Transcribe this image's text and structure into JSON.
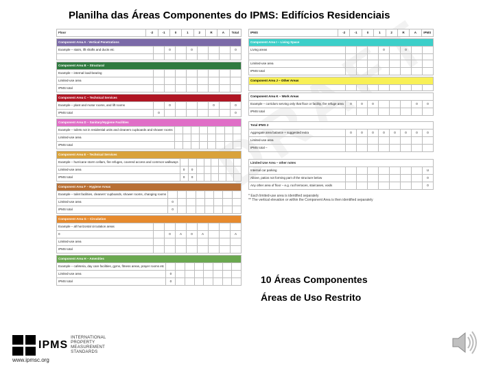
{
  "title": "Planilha das Áreas Componentes do IPMS: Edifícios Residenciais",
  "labels": {
    "l1": "10 Áreas Componentes",
    "l2": "Áreas de Uso Restrito"
  },
  "footer": {
    "logo_lines": [
      "INTERNATIONAL",
      "PROPERTY",
      "MEASUREMENT",
      "STANDARDS"
    ],
    "url": "www.ipmsc.org"
  },
  "watermark": "DRAFT",
  "header_cols": [
    "Floor",
    "-2",
    "-1",
    "0",
    "1",
    "2",
    "R",
    "A",
    "Total"
  ],
  "header_cols_r": [
    "IPMS",
    "-2",
    "-1",
    "0",
    "1",
    "2",
    "R",
    "A",
    "IPMS"
  ],
  "left": [
    {
      "band_color": "#7b6aa8",
      "band": "Component Area A - Vertical Penetrations",
      "rows": [
        [
          "Example – stairs, lift shafts and ducts etc",
          "",
          "0",
          "",
          "0",
          "",
          "",
          "",
          "0"
        ],
        [
          "",
          "",
          "",
          "",
          "",
          "",
          "",
          "",
          ""
        ]
      ]
    },
    {
      "band_color": "#2f7a3f",
      "band": "Component Area B – Structural",
      "rows": [
        [
          "Example – internal load-bearing",
          "",
          "",
          "",
          "",
          "",
          "",
          "",
          ""
        ],
        [
          "Limited-use area",
          "",
          "",
          "",
          "",
          "",
          "",
          "",
          ""
        ],
        [
          "IPMS total",
          "",
          "",
          "",
          "",
          "",
          "",
          "",
          ""
        ]
      ]
    },
    {
      "band_color": "#b01523",
      "band": "Component Area C – Technical Services",
      "rows": [
        [
          "Example – plant and motor rooms, and lift rooms",
          "",
          "0",
          "",
          "",
          "",
          "0",
          "",
          "0"
        ],
        [
          "IPMS total",
          "0",
          "",
          "",
          "",
          "",
          "",
          "",
          "0"
        ]
      ]
    },
    {
      "band_color": "#e06ec7",
      "band": "Component Area D – Sanitary/Hygiene Facilities",
      "rows": [
        [
          "Example – toilets not in residential units and cleaners cupboards and shower rooms",
          "",
          "",
          "",
          "",
          "",
          "",
          "",
          ""
        ],
        [
          "Limited-use area",
          "",
          "",
          "",
          "",
          "",
          "",
          "",
          ""
        ],
        [
          "IPMS total",
          "",
          "",
          "",
          "",
          "",
          "",
          "",
          ""
        ]
      ]
    },
    {
      "band_color": "#d9a23a",
      "band": "Component Area E – Technical Services",
      "rows": [
        [
          "Example – hurricane storm cellars, fire refuges, covered access and common walkways",
          "",
          "",
          "",
          "",
          "",
          "",
          "",
          ""
        ],
        [
          "Limited-use area",
          "0",
          "0",
          "",
          "",
          "",
          "",
          "",
          ""
        ],
        [
          "IPMS total",
          "0",
          "0",
          "",
          "",
          "",
          "",
          "",
          ""
        ]
      ]
    },
    {
      "band_color": "#b86f34",
      "band": "Component Area F – Hygiene Areas",
      "rows": [
        [
          "Example – toilet facilities, cleaners' cupboards, shower rooms, changing rooms",
          "",
          "",
          "",
          "",
          "",
          "",
          "",
          ""
        ],
        [
          "Limited-use area",
          "0",
          "",
          "",
          "",
          "",
          "",
          "",
          ""
        ],
        [
          "IPMS total",
          "0",
          "",
          "",
          "",
          "",
          "",
          "",
          ""
        ]
      ]
    },
    {
      "band_color": "#e68a2e",
      "band": "Component Area G – Circulation",
      "rows": [
        [
          "Example – all horizontal circulation areas",
          "",
          "",
          "",
          "",
          "",
          "",
          "",
          ""
        ],
        [
          "0",
          "",
          "0",
          "A",
          "0",
          "A",
          "",
          "",
          "A"
        ],
        [
          "Limited-use area",
          "",
          "",
          "",
          "",
          "",
          "",
          "",
          ""
        ],
        [
          "IPMS total",
          "",
          "",
          "",
          "",
          "",
          "",
          "",
          ""
        ]
      ]
    },
    {
      "band_color": "#6aa84f",
      "band": "Component Area H – Amenities",
      "rows": [
        [
          "Example – cafeteria, day care facilities, gyms, fitness areas, prayer rooms etc",
          "",
          "",
          "",
          "",
          "",
          "",
          "",
          ""
        ],
        [
          "Limited-use area",
          "0",
          "",
          "",
          "",
          "",
          "",
          "",
          ""
        ],
        [
          "IPMS total",
          "0",
          "",
          "",
          "",
          "",
          "",
          "",
          ""
        ]
      ]
    }
  ],
  "right": [
    {
      "band_color": "#3ccfc9",
      "band": "Component Area I – Living Space",
      "rows": [
        [
          "Living areas",
          "",
          "",
          "",
          "0",
          "",
          "0",
          "",
          ""
        ],
        [
          "",
          "",
          "",
          "",
          "",
          "",
          "",
          "",
          ""
        ],
        [
          "Limited-use area",
          "",
          "",
          "",
          "",
          "",
          "",
          "",
          ""
        ],
        [
          "IPMS total",
          "",
          "",
          "",
          "",
          "",
          "",
          "",
          ""
        ]
      ]
    },
    {
      "band_color": "#f8f056",
      "band": "Component Area J – Other Areas",
      "band_text_color": "#000",
      "rows": [
        [
          "",
          "",
          "",
          "",
          "",
          "",
          "",
          "",
          ""
        ]
      ]
    },
    {
      "band_color": "#ffffff",
      "band": "Component Area K – Work Areas",
      "band_text_color": "#000",
      "rows": [
        [
          "Example – corridors serving only that floor or facility, fire refuge area",
          "0",
          "0",
          "0",
          "",
          "",
          "",
          "0",
          "0"
        ],
        [
          "IPMS total",
          "",
          "",
          "",
          "",
          "",
          "",
          "",
          ""
        ]
      ]
    }
  ],
  "totals": {
    "title": "Total IPMS 2",
    "rows": [
      [
        "Aggregate area balance + suggested extra",
        "0",
        "0",
        "0",
        "0",
        "0",
        "0",
        "0",
        "0"
      ],
      [
        "Limited-use area",
        "",
        "",
        "",
        "",
        "",
        "",
        "",
        ""
      ],
      [
        "IPMS total –",
        "",
        "",
        "",
        "",
        "",
        "",
        "",
        ""
      ]
    ]
  },
  "summary": {
    "title": "Limited Use Area – other notes",
    "rows": [
      [
        "Internal car parking",
        "",
        "",
        "",
        "",
        "",
        "",
        "",
        "U"
      ],
      [
        "Above, patios not forming part of the structure below",
        "",
        "",
        "",
        "",
        "",
        "",
        "",
        "0"
      ],
      [
        "Any other area of floor – e.g. roof terraces, staircases, voids",
        "",
        "",
        "",
        "",
        "",
        "",
        "",
        "0"
      ]
    ],
    "notes": [
      "* Each limited-use area is identified separately",
      "** The vertical elevation or within the Component Area is then identified separately"
    ]
  }
}
